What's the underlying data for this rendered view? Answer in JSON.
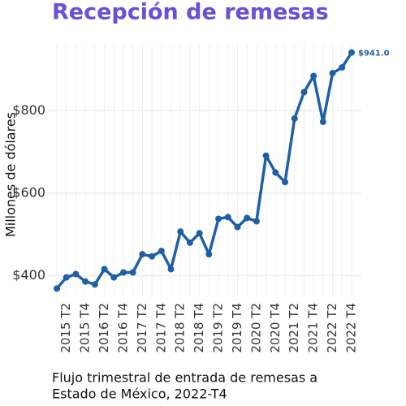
{
  "chart_data": {
    "type": "line",
    "title": "Recepción de remesas",
    "ylabel": "Millones de dólares",
    "caption": [
      "Flujo trimestral de entrada de remesas a",
      "Estado de México, 2022-T4"
    ],
    "categories": [
      null,
      "2015 T2",
      null,
      "2015 T4",
      null,
      "2016 T2",
      null,
      "2016 T4",
      null,
      "2017 T2",
      null,
      "2017 T4",
      null,
      "2018 T2",
      null,
      "2018 T4",
      null,
      "2019 T2",
      null,
      "2019 T4",
      null,
      "2020 T2",
      null,
      "2020 T4",
      null,
      "2021 T2",
      null,
      "2021 T4",
      null,
      "2022 T2",
      null,
      "2022 T4"
    ],
    "values": [
      369,
      396,
      404,
      386,
      379,
      416,
      396,
      408,
      408,
      452,
      447,
      460,
      416,
      507,
      480,
      503,
      452,
      538,
      542,
      518,
      540,
      532,
      691,
      650,
      627,
      781,
      845,
      884,
      773,
      891,
      905,
      941
    ],
    "value_labels": [
      null,
      null,
      null,
      null,
      null,
      null,
      null,
      null,
      null,
      null,
      null,
      null,
      null,
      null,
      null,
      null,
      null,
      null,
      null,
      null,
      null,
      null,
      null,
      null,
      null,
      null,
      null,
      null,
      null,
      null,
      null,
      "$941.0"
    ],
    "color": "#1f5fa6",
    "ylim": [
      350,
      960
    ],
    "yticks": [
      {
        "value": 400,
        "label": "$400"
      },
      {
        "value": 600,
        "label": "$600"
      },
      {
        "value": 800,
        "label": "$800"
      }
    ],
    "grid": true
  }
}
